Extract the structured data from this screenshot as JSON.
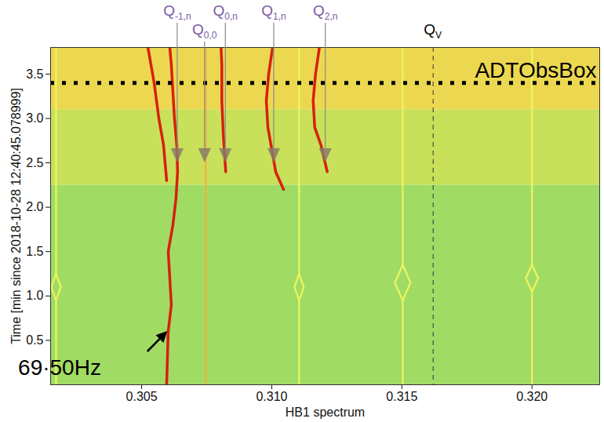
{
  "chart_data": {
    "type": "spectrogram",
    "xlabel": "HB1 spectrum",
    "ylabel": "Time [min since 2018-10-28 12:40:45.078999]",
    "xlim": [
      0.3015,
      0.3226
    ],
    "ylim": [
      0,
      3.8
    ],
    "xticks": [
      0.305,
      {
        "value": 0.31,
        "label": "0.310"
      },
      0.315,
      {
        "value": 0.32,
        "label": "0.320"
      }
    ],
    "yticks": [
      0.5,
      {
        "value": 1,
        "label": "1.0"
      },
      1.5,
      {
        "value": 2,
        "label": "2.0"
      },
      2.5,
      {
        "value": 3,
        "label": "3.0"
      },
      3.5
    ],
    "regions": [
      {
        "y": [
          0,
          2.25
        ],
        "color": "#a0dc64"
      },
      {
        "y": [
          2.25,
          3.1
        ],
        "color": "#c8e05a"
      },
      {
        "y": [
          3.1,
          3.8
        ],
        "color": "#ecd850"
      }
    ],
    "series": [
      {
        "color": "#d8200c",
        "x": [
          0.30596,
          0.30599,
          0.30602,
          0.30614,
          0.30608,
          0.30602,
          0.3062,
          0.30632,
          0.30638,
          0.30635,
          0.30626,
          0.3062,
          0.30614,
          0.30608
        ],
        "y": [
          0,
          0.3,
          0.6,
          0.9,
          1.2,
          1.5,
          1.8,
          2.1,
          2.4,
          2.7,
          3.0,
          3.3,
          3.6,
          3.8
        ]
      },
      {
        "color": "#d8200c",
        "x": [
          0.30596,
          0.30584,
          0.30566,
          0.30548,
          0.30524
        ],
        "y": [
          2.3,
          2.7,
          3.0,
          3.4,
          3.8
        ]
      },
      {
        "color": "#f0b040",
        "x": [
          0.30746,
          0.30746
        ],
        "y": [
          0,
          3.8
        ]
      },
      {
        "color": "#d8200c",
        "x": [
          0.30823,
          0.30814,
          0.30808,
          0.30808,
          0.30805
        ],
        "y": [
          2.4,
          2.8,
          3.2,
          3.6,
          3.8
        ]
      },
      {
        "color": "#d8200c",
        "x": [
          0.31045,
          0.31015,
          0.31003,
          0.30985,
          0.30979,
          0.30988,
          0.31003
        ],
        "y": [
          2.2,
          2.4,
          2.6,
          2.9,
          3.2,
          3.5,
          3.8
        ]
      },
      {
        "color": "#d8200c",
        "x": [
          0.31213,
          0.31189,
          0.31165,
          0.31159,
          0.31168,
          0.31183
        ],
        "y": [
          2.4,
          2.7,
          2.9,
          3.2,
          3.5,
          3.8
        ]
      },
      {
        "color": "#eef55e",
        "x": [
          0.30171,
          0.30171,
          0.30153,
          0.30171,
          0.30171
        ],
        "y": [
          0,
          0.95,
          1.1,
          1.25,
          3.8
        ]
      },
      {
        "color": "#eef55e",
        "x": [
          0.30171,
          0.30189,
          0.30171
        ],
        "y": [
          0.95,
          1.1,
          1.25
        ]
      },
      {
        "color": "#eef55e",
        "x": [
          0.31105,
          0.31105,
          0.31087,
          0.31105,
          0.31105
        ],
        "y": [
          0,
          0.95,
          1.1,
          1.25,
          3.8
        ]
      },
      {
        "color": "#eef55e",
        "x": [
          0.31105,
          0.31123,
          0.31105
        ],
        "y": [
          0.95,
          1.1,
          1.25
        ]
      },
      {
        "color": "#eef55e",
        "x": [
          0.31503,
          0.31503,
          0.31473,
          0.31503,
          0.31503
        ],
        "y": [
          0,
          0.95,
          1.15,
          1.35,
          3.8
        ]
      },
      {
        "color": "#eef55e",
        "x": [
          0.31503,
          0.31533,
          0.31503
        ],
        "y": [
          0.95,
          1.15,
          1.35
        ]
      },
      {
        "color": "#eef55e",
        "x": [
          0.32,
          0.32,
          0.31976,
          0.32,
          0.32
        ],
        "y": [
          0,
          1.05,
          1.2,
          1.35,
          3.8
        ]
      },
      {
        "color": "#eef55e",
        "x": [
          0.32,
          0.32024,
          0.32
        ],
        "y": [
          1.05,
          1.2,
          1.35
        ]
      }
    ],
    "markers": [
      {
        "label": "Q",
        "subscript": "-1,n",
        "x": 0.30638,
        "y": 2.5,
        "color": "#7b5aa6"
      },
      {
        "label": "Q",
        "subscript": "0,0",
        "x": 0.30743,
        "y": 2.5,
        "color": "#7b5aa6"
      },
      {
        "label": "Q",
        "subscript": "0,n",
        "x": 0.30823,
        "y": 2.5,
        "color": "#7b5aa6"
      },
      {
        "label": "Q",
        "subscript": "1,n",
        "x": 0.31009,
        "y": 2.5,
        "color": "#7b5aa6"
      },
      {
        "label": "Q",
        "subscript": "2,n",
        "x": 0.31207,
        "y": 2.5,
        "color": "#7b5aa6"
      }
    ],
    "vlines": [
      {
        "x": 0.3162,
        "label": "Q",
        "subscript": "V",
        "line_style": "dashed"
      }
    ],
    "hlines": [
      {
        "y": 3.4,
        "label": "ADTObsBox",
        "line_style": "dotted"
      }
    ],
    "annotations": [
      {
        "text": "69·50Hz",
        "x": 0.306,
        "y": 0.6
      }
    ]
  }
}
